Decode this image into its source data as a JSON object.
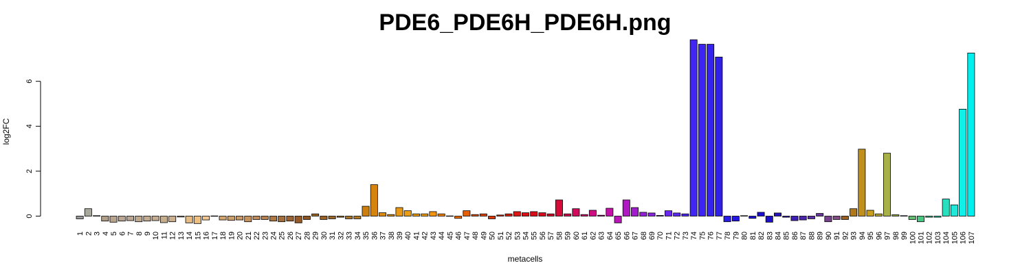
{
  "chart_data": {
    "type": "bar",
    "title": "PDE6_PDE6H_PDE6H.png",
    "xlabel": "metacells",
    "ylabel": "log2FC",
    "ylim": [
      -0.4,
      7.9
    ],
    "yticks": [
      0,
      2,
      4,
      6
    ],
    "grid": false,
    "legend": "none",
    "categories": [
      "1",
      "2",
      "3",
      "4",
      "5",
      "6",
      "7",
      "8",
      "9",
      "10",
      "11",
      "12",
      "13",
      "14",
      "15",
      "16",
      "17",
      "18",
      "19",
      "20",
      "21",
      "22",
      "23",
      "24",
      "25",
      "26",
      "27",
      "28",
      "29",
      "30",
      "31",
      "32",
      "33",
      "34",
      "35",
      "36",
      "37",
      "38",
      "39",
      "40",
      "41",
      "42",
      "43",
      "44",
      "45",
      "46",
      "47",
      "48",
      "49",
      "50",
      "51",
      "52",
      "53",
      "54",
      "55",
      "56",
      "57",
      "58",
      "59",
      "60",
      "61",
      "62",
      "63",
      "64",
      "65",
      "66",
      "67",
      "68",
      "69",
      "70",
      "71",
      "72",
      "73",
      "74",
      "75",
      "76",
      "77",
      "78",
      "79",
      "80",
      "81",
      "82",
      "83",
      "84",
      "85",
      "86",
      "87",
      "88",
      "89",
      "90",
      "91",
      "92",
      "93",
      "94",
      "95",
      "96",
      "97",
      "98",
      "99",
      "100",
      "101",
      "102",
      "103",
      "104",
      "105",
      "106",
      "107"
    ],
    "values": [
      -0.12,
      0.33,
      0.02,
      -0.22,
      -0.27,
      -0.22,
      -0.2,
      -0.25,
      -0.22,
      -0.2,
      -0.29,
      -0.25,
      -0.04,
      -0.3,
      -0.33,
      -0.17,
      0.01,
      -0.17,
      -0.19,
      -0.17,
      -0.25,
      -0.15,
      -0.15,
      -0.22,
      -0.25,
      -0.22,
      -0.3,
      -0.15,
      0.1,
      -0.15,
      -0.12,
      -0.05,
      -0.12,
      -0.12,
      0.44,
      1.4,
      0.15,
      0.07,
      0.38,
      0.24,
      0.1,
      0.1,
      0.2,
      0.1,
      0.01,
      -0.1,
      0.24,
      0.07,
      0.1,
      -0.12,
      0.05,
      0.1,
      0.2,
      0.15,
      0.2,
      0.15,
      0.1,
      0.72,
      0.1,
      0.33,
      0.07,
      0.26,
      0.04,
      0.35,
      -0.3,
      0.72,
      0.38,
      0.17,
      0.14,
      0.03,
      0.24,
      0.14,
      0.1,
      7.85,
      7.65,
      7.65,
      7.08,
      -0.25,
      -0.22,
      0.02,
      -0.1,
      0.17,
      -0.27,
      0.14,
      -0.05,
      -0.2,
      -0.17,
      -0.12,
      0.12,
      -0.25,
      -0.15,
      -0.15,
      0.33,
      2.98,
      0.26,
      0.1,
      2.8,
      0.06,
      0.02,
      -0.15,
      -0.25,
      -0.05,
      -0.05,
      0.76,
      0.5,
      4.76,
      7.26
    ],
    "colors": [
      "#9a9a9a",
      "#a8a89c",
      "#a7a195",
      "#b09e8a",
      "#b7a48f",
      "#baa692",
      "#bda792",
      "#c0a991",
      "#c2ab91",
      "#c4ad92",
      "#c6ad8e",
      "#c9b091",
      "#cbb28f",
      "#e6bc84",
      "#edc081",
      "#f2c690",
      "#f0c08a",
      "#d2a571",
      "#cda070",
      "#c99a6b",
      "#c49360",
      "#bf8b58",
      "#b7824f",
      "#ae7845",
      "#a46e3c",
      "#9d6433",
      "#955a29",
      "#8f5424",
      "#9a6a2a",
      "#9a6325",
      "#9b6628",
      "#a46e2a",
      "#aa7328",
      "#b17826",
      "#cc7f0e",
      "#d68410",
      "#dd8c12",
      "#e29214",
      "#e79815",
      "#eb9e14",
      "#ef9f10",
      "#f4a111",
      "#f6950c",
      "#f28508",
      "#ee7a08",
      "#ea6c06",
      "#e55f06",
      "#e45206",
      "#e34405",
      "#e03605",
      "#dd2a05",
      "#dc2010",
      "#dd1812",
      "#db1016",
      "#d90c1a",
      "#d70a20",
      "#d80a28",
      "#d80a38",
      "#d50a4a",
      "#d20a5c",
      "#cf0c70",
      "#cc0e82",
      "#c81095",
      "#c212a8",
      "#bb14b8",
      "#b018c4",
      "#a21cce",
      "#9420d8",
      "#8624e0",
      "#7826e8",
      "#6a28ee",
      "#5c28f2",
      "#4e28f4",
      "#4226f4",
      "#3c24f2",
      "#3622ee",
      "#3020e8",
      "#2a1ee4",
      "#2418e0",
      "#2014dc",
      "#1c12d8",
      "#1a10d4",
      "#1c10cc",
      "#2414c4",
      "#3018bc",
      "#3e1eb4",
      "#4c26ac",
      "#5a2ea2",
      "#683898",
      "#76428e",
      "#844c84",
      "#9a6020",
      "#b07a1a",
      "#c0901a",
      "#c99f1c",
      "#b8a83a",
      "#a8b048",
      "#98b048",
      "#80b060",
      "#60c070",
      "#48c880",
      "#38d090",
      "#30d8a8",
      "#28e0c0",
      "#20e8d8",
      "#10f0e8",
      "#00f0f0"
    ]
  }
}
